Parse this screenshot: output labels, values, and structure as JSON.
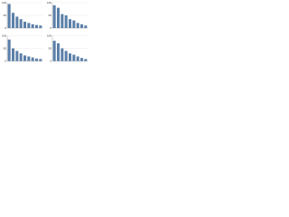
{
  "chart_data": [
    {
      "type": "bar",
      "categories": [
        null,
        null,
        null,
        null,
        null,
        null,
        null,
        null,
        null
      ],
      "values": [
        95,
        60,
        45,
        35,
        25,
        20,
        15,
        12,
        10
      ],
      "color": "#5b7fa8",
      "ylim": [
        0,
        100
      ],
      "yticks": [
        0,
        50,
        100
      ],
      "grid": true
    },
    {
      "type": "bar",
      "categories": [
        null,
        null,
        null,
        null,
        null,
        null,
        null,
        null,
        null
      ],
      "values": [
        90,
        80,
        55,
        50,
        35,
        30,
        20,
        15,
        10
      ],
      "color": "#5b7fa8",
      "ylim": [
        0,
        100
      ],
      "yticks": [
        0,
        50,
        100
      ],
      "grid": true
    },
    {
      "type": "bar",
      "categories": [
        null,
        null,
        null,
        null,
        null,
        null,
        null,
        null,
        null
      ],
      "values": [
        85,
        50,
        40,
        30,
        22,
        18,
        14,
        10,
        8
      ],
      "color": "#5b7fa8",
      "ylim": [
        0,
        100
      ],
      "yticks": [
        0,
        50,
        100
      ],
      "grid": true
    },
    {
      "type": "bar",
      "categories": [
        null,
        null,
        null,
        null,
        null,
        null,
        null,
        null,
        null
      ],
      "values": [
        80,
        70,
        50,
        40,
        30,
        25,
        18,
        12,
        8
      ],
      "color": "#5b7fa8",
      "ylim": [
        0,
        100
      ],
      "yticks": [
        0,
        50,
        100
      ],
      "grid": true
    }
  ]
}
